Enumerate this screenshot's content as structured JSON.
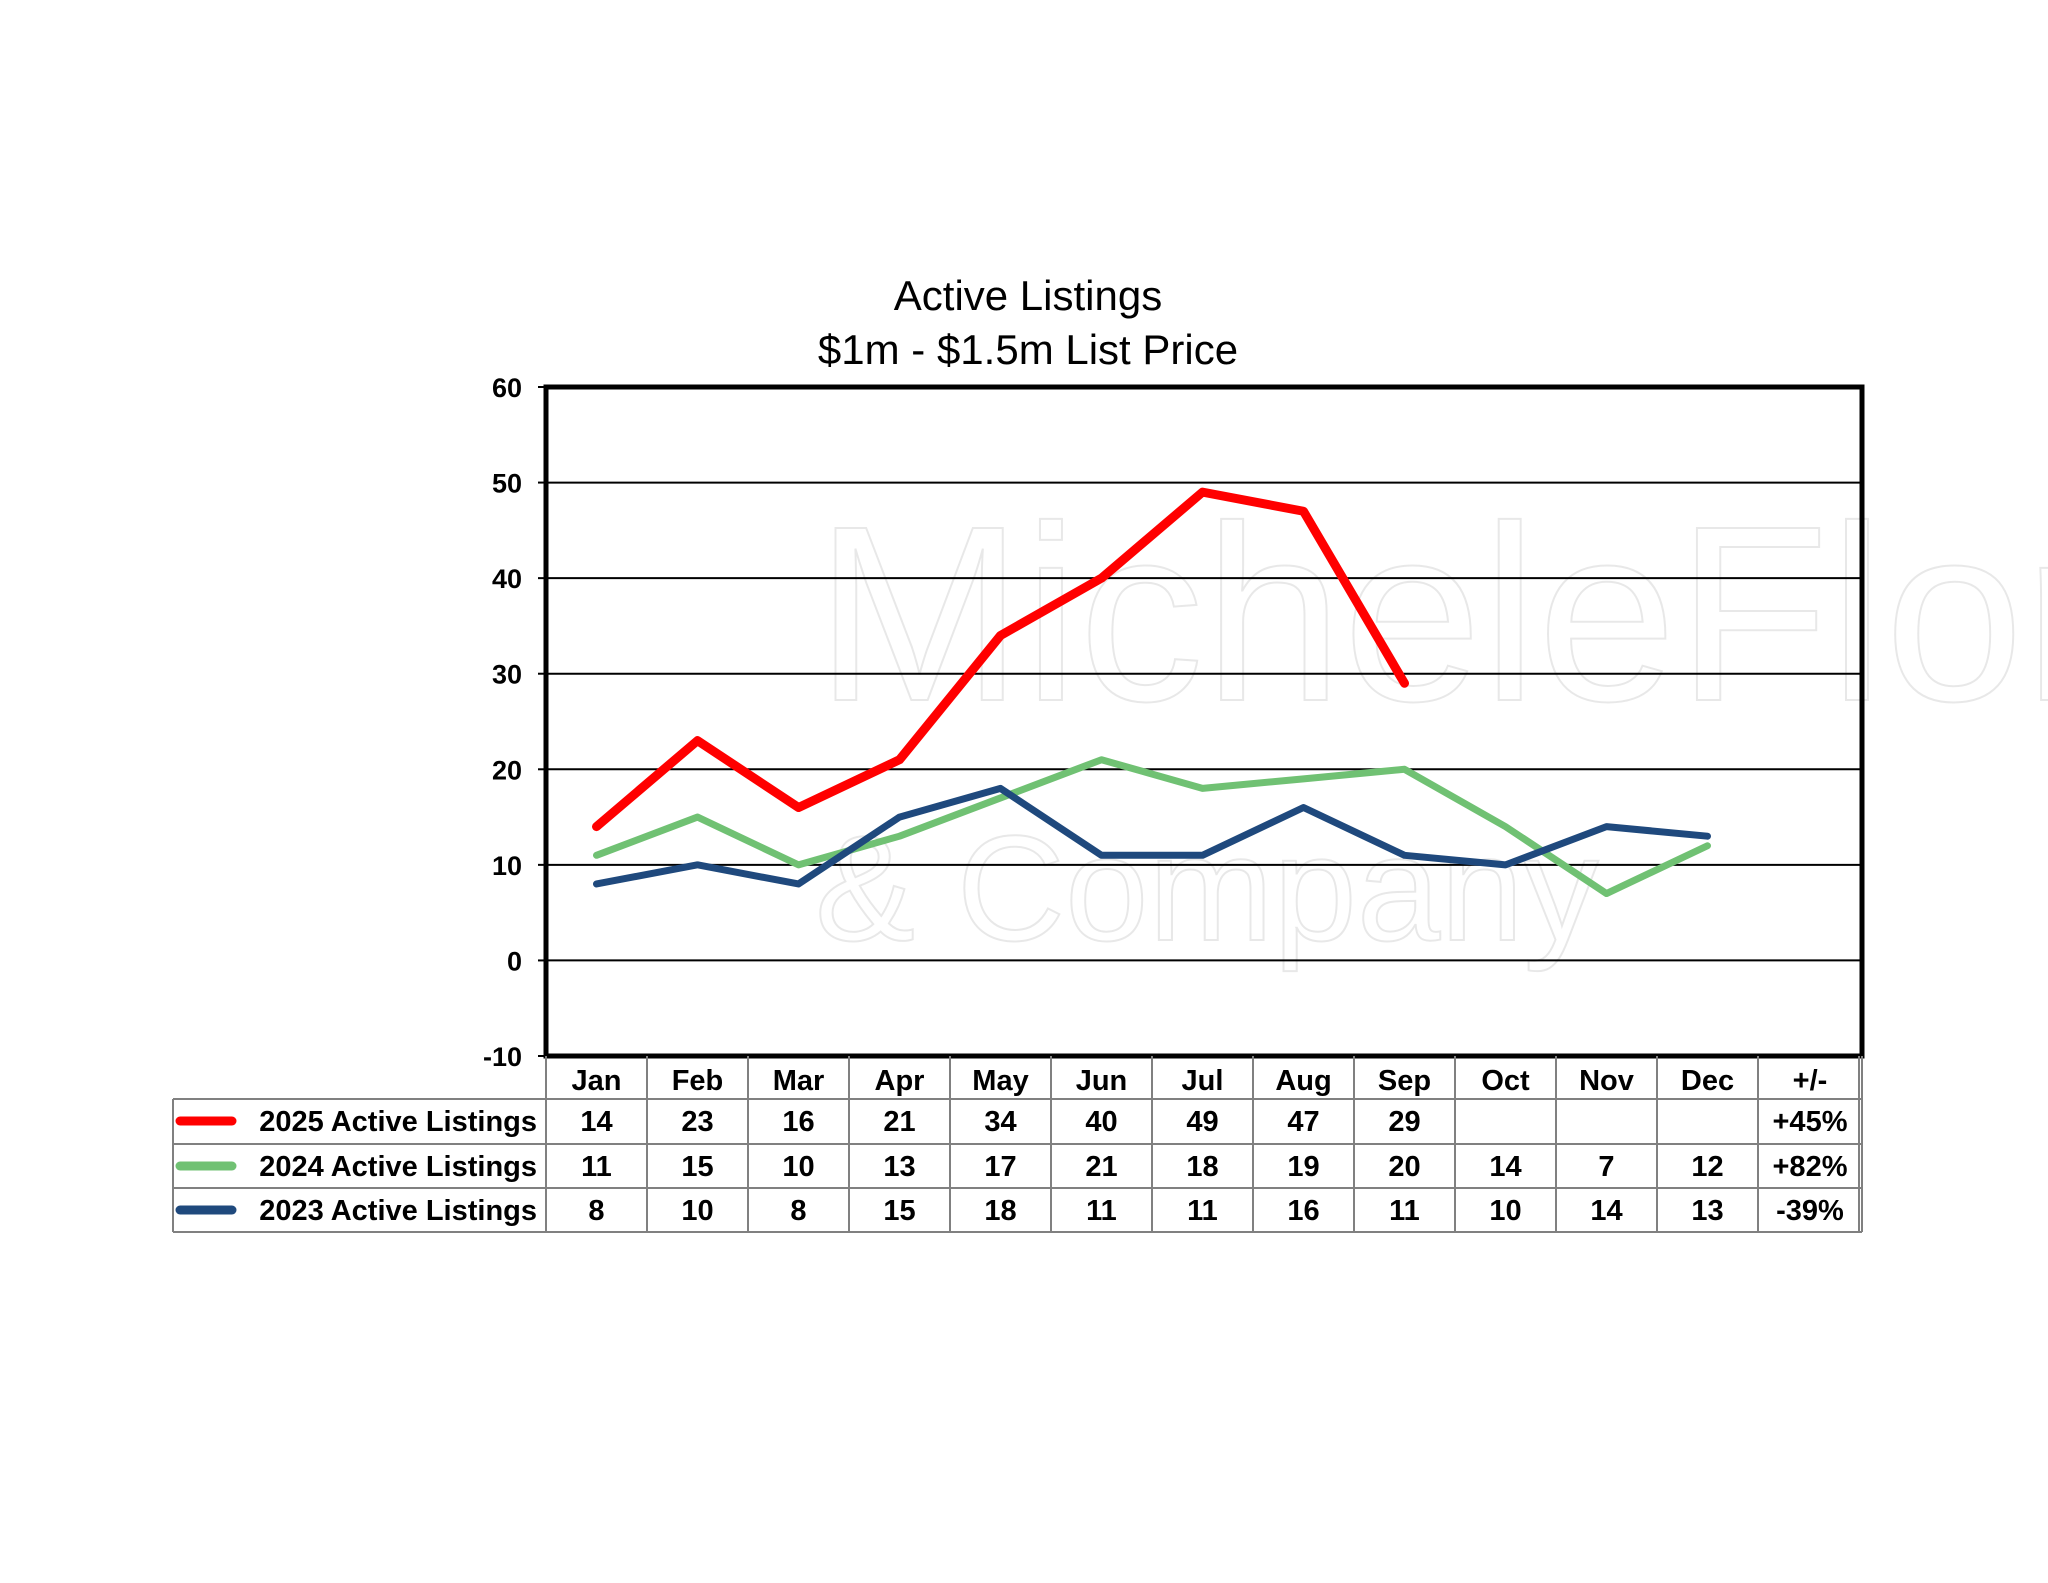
{
  "chart_data": {
    "type": "line",
    "title": "Active Listings",
    "subtitle": "$1m - $1.5m List Price",
    "categories": [
      "Jan",
      "Feb",
      "Mar",
      "Apr",
      "May",
      "Jun",
      "Jul",
      "Aug",
      "Sep",
      "Oct",
      "Nov",
      "Dec"
    ],
    "change_header": "+/-",
    "ylim": [
      -10,
      60
    ],
    "yticks": [
      -10,
      0,
      10,
      20,
      30,
      40,
      50,
      60
    ],
    "grid": true,
    "legend": "data-table below chart",
    "series": [
      {
        "name": "2025 Active Listings",
        "color": "#ff0000",
        "values": [
          14,
          23,
          16,
          21,
          34,
          40,
          49,
          47,
          29,
          null,
          null,
          null
        ],
        "change": "+45%"
      },
      {
        "name": "2024 Active Listings",
        "color": "#70c173",
        "values": [
          11,
          15,
          10,
          13,
          17,
          21,
          18,
          19,
          20,
          14,
          7,
          12
        ],
        "change": "+82%"
      },
      {
        "name": "2023 Active Listings",
        "color": "#1f497d",
        "values": [
          8,
          10,
          8,
          15,
          18,
          11,
          11,
          16,
          11,
          10,
          14,
          13
        ],
        "change": "-39%"
      }
    ],
    "watermark": [
      "MicheleFlory",
      "& Company"
    ]
  }
}
